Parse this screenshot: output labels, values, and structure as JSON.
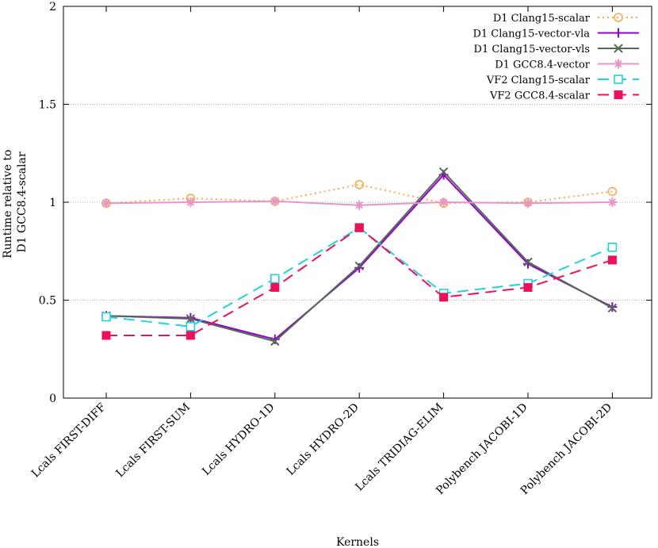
{
  "chart_data": {
    "type": "line",
    "categories": [
      "Lcals FIRST-DIFF",
      "Lcals FIRST-SUM",
      "Lcals HYDRO-1D",
      "Lcals HYDRO-2D",
      "Lcals TRIDIAG-ELIM",
      "Polybench JACOBI-1D",
      "Polybench JACOBI-2D"
    ],
    "xlabel": "Kernels",
    "ylabel": "Runtime relative to D1 GCC8.4-scalar",
    "ylim": [
      0,
      2
    ],
    "yticks": [
      "0",
      "0.5",
      "1",
      "1.5",
      "2"
    ],
    "grid": "horizontal dotted at 0.5, 1, 1.5",
    "legend_position": "top-right",
    "series": [
      {
        "name": "D1 Clang15-scalar",
        "color": "#ffa94d",
        "dash": "dotted",
        "marker": "circle",
        "values": [
          0.995,
          1.02,
          1.005,
          1.09,
          0.995,
          1.0,
          1.055
        ]
      },
      {
        "name": "D1 Clang15-vector-vla",
        "color": "#9400d3",
        "dash": "solid",
        "marker": "plus",
        "values": [
          0.42,
          0.41,
          0.3,
          0.665,
          1.14,
          0.685,
          0.465
        ]
      },
      {
        "name": "D1 Clang15-vector-vls",
        "color": "#556b55",
        "dash": "solid",
        "marker": "cross",
        "values": [
          0.42,
          0.405,
          0.29,
          0.675,
          1.155,
          0.695,
          0.46
        ]
      },
      {
        "name": "D1 GCC8.4-vector",
        "color": "#e596c8",
        "dash": "solid",
        "marker": "star",
        "values": [
          0.995,
          1.0,
          1.005,
          0.985,
          1.0,
          0.995,
          1.0
        ]
      },
      {
        "name": "VF2 Clang15-scalar",
        "color": "#1fd3e0",
        "dash": "dashed",
        "marker": "square",
        "values": [
          0.415,
          0.365,
          0.61,
          0.87,
          0.535,
          0.585,
          0.77
        ]
      },
      {
        "name": "VF2 GCC8.4-scalar",
        "color": "#f0105a",
        "dash": "dashed",
        "marker": "filled-square",
        "values": [
          0.32,
          0.32,
          0.565,
          0.87,
          0.515,
          0.565,
          0.705
        ]
      }
    ]
  }
}
